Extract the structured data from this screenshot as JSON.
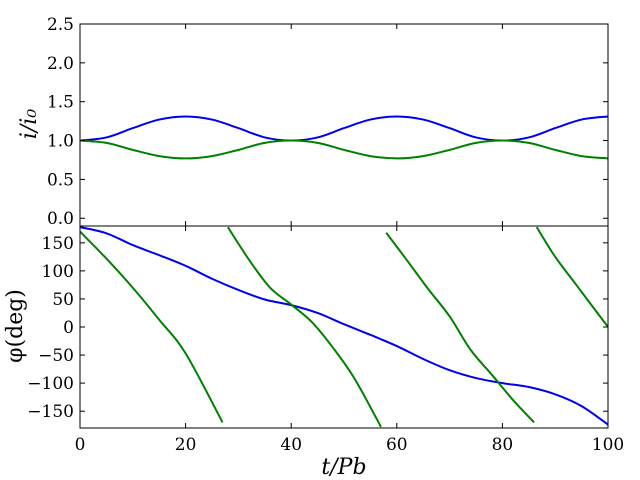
{
  "chart_data": [
    {
      "type": "line",
      "panel": "top",
      "title": "",
      "xlabel": "",
      "ylabel": "i/i₀",
      "xlim": [
        0,
        100
      ],
      "ylim": [
        -0.1,
        2.5
      ],
      "yticks": [
        0.0,
        0.5,
        1.0,
        1.5,
        2.0,
        2.5
      ],
      "ytick_labels": [
        "0.0",
        "0.5",
        "1.0",
        "1.5",
        "2.0",
        "2.5"
      ],
      "grid": false,
      "colors": {
        "blue": "#0000ee",
        "green": "#008000"
      },
      "series": [
        {
          "color": "#0000ee",
          "x": [
            0,
            5,
            10,
            15,
            20,
            25,
            30,
            35,
            40,
            45,
            50,
            55,
            60,
            65,
            70,
            75,
            80,
            85,
            90,
            95,
            100
          ],
          "values": [
            1.0,
            1.04,
            1.16,
            1.27,
            1.31,
            1.27,
            1.16,
            1.04,
            1.0,
            1.04,
            1.16,
            1.27,
            1.31,
            1.27,
            1.16,
            1.04,
            1.0,
            1.04,
            1.16,
            1.27,
            1.31
          ]
        },
        {
          "color": "#008000",
          "x": [
            0,
            5,
            10,
            15,
            20,
            25,
            30,
            35,
            40,
            45,
            50,
            55,
            60,
            65,
            70,
            75,
            80,
            85,
            90,
            95,
            100
          ],
          "values": [
            1.0,
            0.97,
            0.88,
            0.8,
            0.77,
            0.8,
            0.88,
            0.97,
            1.0,
            0.97,
            0.88,
            0.8,
            0.77,
            0.8,
            0.88,
            0.97,
            1.0,
            0.97,
            0.88,
            0.8,
            0.77
          ]
        }
      ]
    },
    {
      "type": "line",
      "panel": "bottom",
      "title": "",
      "xlabel": "t/Pb",
      "ylabel": "φ(deg)",
      "xlim": [
        0,
        100
      ],
      "ylim": [
        -180,
        180
      ],
      "xticks": [
        0,
        20,
        40,
        60,
        80,
        100
      ],
      "xtick_labels": [
        "0",
        "20",
        "40",
        "60",
        "80",
        "100"
      ],
      "yticks": [
        -150,
        -100,
        -50,
        0,
        50,
        100,
        150
      ],
      "ytick_labels": [
        "−150",
        "−100",
        "−50",
        "0",
        "50",
        "100",
        "150"
      ],
      "grid": false,
      "series": [
        {
          "color": "#0000ee",
          "x": [
            0,
            5,
            10,
            15,
            20,
            25,
            30,
            35,
            40,
            45,
            50,
            55,
            60,
            65,
            70,
            75,
            80,
            85,
            90,
            95,
            100
          ],
          "values": [
            178,
            167,
            146,
            128,
            109,
            86,
            66,
            49,
            39,
            25,
            5,
            -14,
            -34,
            -57,
            -77,
            -91,
            -100,
            -107,
            -120,
            -141,
            -174
          ]
        },
        {
          "color": "#008000",
          "segments": [
            {
              "x": [
                0,
                5,
                10,
                15,
                20,
                27
              ],
              "values": [
                170,
                122,
                70,
                13,
                -47,
                -170
              ]
            },
            {
              "x": [
                28,
                32,
                36,
                40,
                44,
                48,
                52,
                57
              ],
              "values": [
                178,
                120,
                70,
                40,
                8,
                -38,
                -92,
                -178
              ]
            },
            {
              "x": [
                58,
                62,
                66,
                70,
                74,
                78,
                82,
                86
              ],
              "values": [
                168,
                118,
                67,
                19,
                -41,
                -85,
                -130,
                -170
              ]
            },
            {
              "x": [
                86.5,
                90,
                94,
                100
              ],
              "values": [
                178,
                125,
                75,
                0
              ]
            }
          ]
        }
      ]
    }
  ]
}
